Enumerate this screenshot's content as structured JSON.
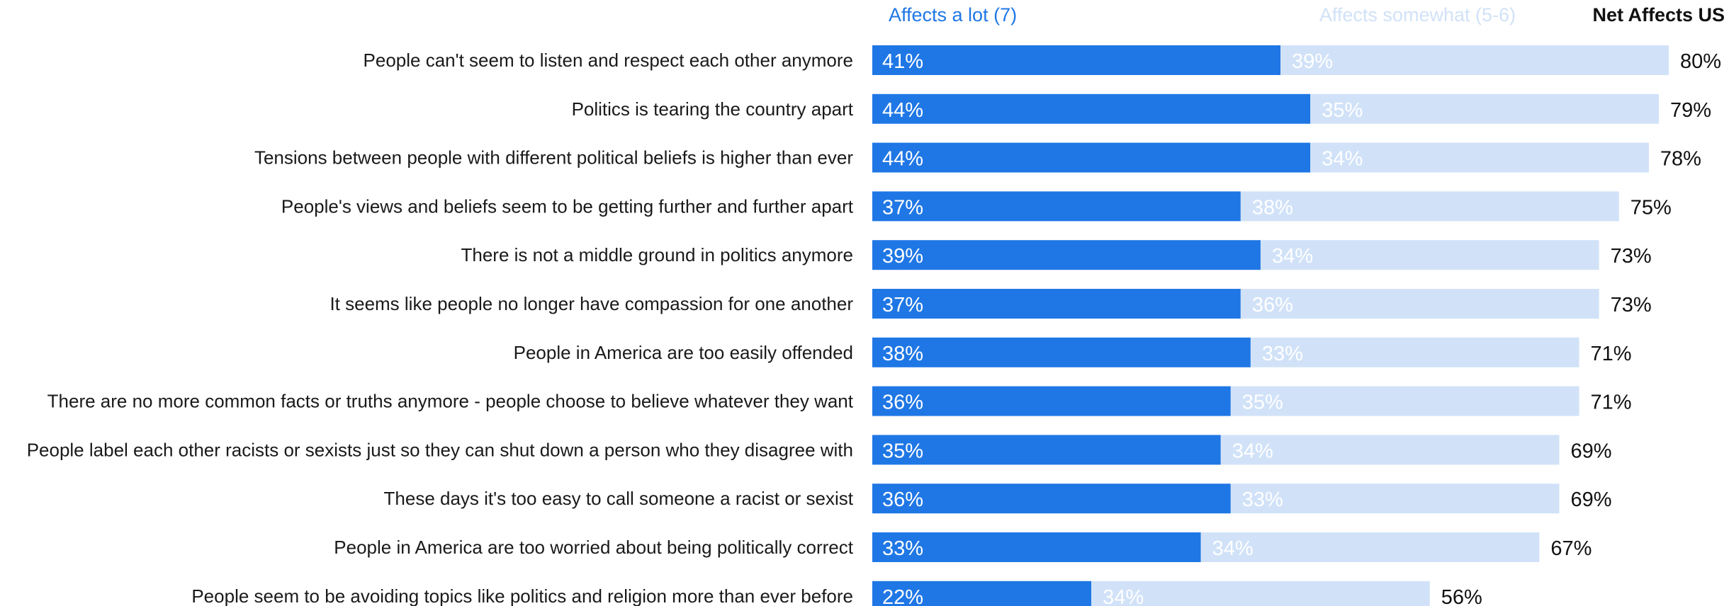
{
  "colors": {
    "affects_a_lot": "#1f77e5",
    "affects_somewhat": "#d1e2f8",
    "segment_text_on_dark": "#ffffff",
    "segment_text_on_light": "#ffffff",
    "category_text": "#1a1a1a",
    "net_text": "#111111"
  },
  "chart_data": {
    "type": "bar",
    "orientation": "horizontal",
    "stacked": true,
    "legend_position": "top",
    "grid": false,
    "xlim": [
      0,
      100
    ],
    "legend": {
      "affects_a_lot": "Affects a lot (7)",
      "affects_somewhat": "Affects somewhat (5-6)",
      "net": "Net Affects US"
    },
    "categories": [
      "People can't seem to listen and respect each other anymore",
      "Politics is tearing the country apart",
      "Tensions between people with different political beliefs is higher than ever",
      "People's views and beliefs seem to be getting further and further apart",
      "There is not a middle ground in politics anymore",
      "It seems like people no longer have compassion for one another",
      "People in America are too easily offended",
      "There are no more common facts or truths anymore - people choose to believe whatever they want",
      "People label each other racists or sexists just so they can shut down a person who they disagree with",
      "These days it's too easy to call someone a racist or sexist",
      "People in America are too worried about being politically correct",
      "People seem to be avoiding topics like politics and religion more than ever before"
    ],
    "series": [
      {
        "name": "Affects a lot (7)",
        "values": [
          41,
          44,
          44,
          37,
          39,
          37,
          38,
          36,
          35,
          36,
          33,
          22
        ],
        "labels": [
          "41%",
          "44%",
          "44%",
          "37%",
          "39%",
          "37%",
          "38%",
          "36%",
          "35%",
          "36%",
          "33%",
          "22%"
        ]
      },
      {
        "name": "Affects somewhat (5-6)",
        "values": [
          39,
          35,
          34,
          38,
          34,
          36,
          33,
          35,
          34,
          33,
          34,
          34
        ],
        "labels": [
          "39%",
          "35%",
          "34%",
          "38%",
          "34%",
          "36%",
          "33%",
          "35%",
          "34%",
          "33%",
          "34%",
          "34%"
        ]
      }
    ],
    "net": {
      "name": "Net Affects US",
      "values": [
        80,
        79,
        78,
        75,
        73,
        73,
        71,
        71,
        69,
        69,
        67,
        56
      ],
      "labels": [
        "80%",
        "79%",
        "78%",
        "75%",
        "73%",
        "73%",
        "71%",
        "71%",
        "69%",
        "69%",
        "67%",
        "56%"
      ]
    }
  }
}
